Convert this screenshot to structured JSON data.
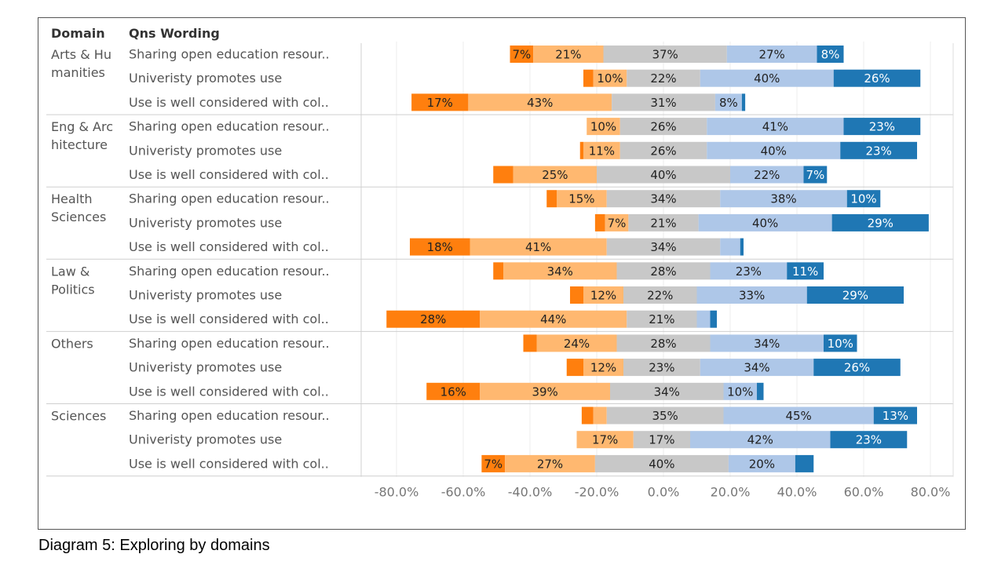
{
  "caption": "Diagram 5: Exploring by domains",
  "chart_data": {
    "type": "bar",
    "subtype": "diverging-stacked-horizontal",
    "column_headers": [
      "Domain",
      "Qns Wording"
    ],
    "x_ticks": [
      "-80.0%",
      "-60.0%",
      "-40.0%",
      "-20.0%",
      "0.0%",
      "20.0%",
      "40.0%",
      "60.0%",
      "80.0%"
    ],
    "xlim": [
      -0.86,
      0.86
    ],
    "grid": true,
    "colors": [
      "#ff7f0e",
      "#ffb870",
      "#c8c8c8",
      "#aec7e8",
      "#1f77b4"
    ],
    "domains": [
      {
        "name_lines": [
          "Arts & Hu",
          "manities"
        ],
        "questions": [
          {
            "label": "Sharing open education resour..",
            "start": -0.46,
            "segments": [
              0.07,
              0.21,
              0.37,
              0.27,
              0.08
            ],
            "labels": [
              "7%",
              "21%",
              "37%",
              "27%",
              "8%"
            ]
          },
          {
            "label": "Univeristy promotes use",
            "start": -0.24,
            "segments": [
              0.03,
              0.1,
              0.22,
              0.4,
              0.26
            ],
            "labels": [
              "",
              "10%",
              "22%",
              "40%",
              "26%"
            ]
          },
          {
            "label": "Use is well considered with col..",
            "start": -0.755,
            "segments": [
              0.17,
              0.43,
              0.31,
              0.08,
              0.01
            ],
            "labels": [
              "17%",
              "43%",
              "31%",
              "8%",
              ""
            ]
          }
        ]
      },
      {
        "name_lines": [
          "Eng & Arc",
          "hitecture"
        ],
        "questions": [
          {
            "label": "Sharing open education resour..",
            "start": -0.23,
            "segments": [
              0.0,
              0.1,
              0.26,
              0.41,
              0.23
            ],
            "labels": [
              "",
              "10%",
              "26%",
              "41%",
              "23%"
            ]
          },
          {
            "label": "Univeristy promotes use",
            "start": -0.25,
            "segments": [
              0.01,
              0.11,
              0.26,
              0.4,
              0.23
            ],
            "labels": [
              "",
              "11%",
              "26%",
              "40%",
              "23%"
            ]
          },
          {
            "label": "Use is well considered with col..",
            "start": -0.51,
            "segments": [
              0.06,
              0.25,
              0.4,
              0.22,
              0.07
            ],
            "labels": [
              "",
              "25%",
              "40%",
              "22%",
              "7%"
            ]
          }
        ]
      },
      {
        "name_lines": [
          "Health",
          "Sciences"
        ],
        "questions": [
          {
            "label": "Sharing open education resour..",
            "start": -0.35,
            "segments": [
              0.03,
              0.15,
              0.34,
              0.38,
              0.1
            ],
            "labels": [
              "",
              "15%",
              "34%",
              "38%",
              "10%"
            ]
          },
          {
            "label": "Univeristy promotes use",
            "start": -0.205,
            "segments": [
              0.03,
              0.07,
              0.21,
              0.4,
              0.29
            ],
            "labels": [
              "",
              "7%",
              "21%",
              "40%",
              "29%"
            ]
          },
          {
            "label": "Use is well considered with col..",
            "start": -0.76,
            "segments": [
              0.18,
              0.41,
              0.34,
              0.06,
              0.01
            ],
            "labels": [
              "18%",
              "41%",
              "34%",
              "",
              ""
            ]
          }
        ]
      },
      {
        "name_lines": [
          "Law &",
          "Politics"
        ],
        "questions": [
          {
            "label": "Sharing open education resour..",
            "start": -0.51,
            "segments": [
              0.03,
              0.34,
              0.28,
              0.23,
              0.11
            ],
            "labels": [
              "",
              "34%",
              "28%",
              "23%",
              "11%"
            ]
          },
          {
            "label": "Univeristy promotes use",
            "start": -0.28,
            "segments": [
              0.04,
              0.12,
              0.22,
              0.33,
              0.29
            ],
            "labels": [
              "",
              "12%",
              "22%",
              "33%",
              "29%"
            ]
          },
          {
            "label": "Use is well considered with col..",
            "start": -0.83,
            "segments": [
              0.28,
              0.44,
              0.21,
              0.04,
              0.02
            ],
            "labels": [
              "28%",
              "44%",
              "21%",
              "",
              ""
            ]
          }
        ]
      },
      {
        "name_lines": [
          "Others"
        ],
        "questions": [
          {
            "label": "Sharing open education resour..",
            "start": -0.42,
            "segments": [
              0.04,
              0.24,
              0.28,
              0.34,
              0.1
            ],
            "labels": [
              "",
              "24%",
              "28%",
              "34%",
              "10%"
            ]
          },
          {
            "label": "Univeristy promotes use",
            "start": -0.29,
            "segments": [
              0.05,
              0.12,
              0.23,
              0.34,
              0.26
            ],
            "labels": [
              "",
              "12%",
              "23%",
              "34%",
              "26%"
            ]
          },
          {
            "label": "Use is well considered with col..",
            "start": -0.71,
            "segments": [
              0.16,
              0.39,
              0.34,
              0.1,
              0.02
            ],
            "labels": [
              "16%",
              "39%",
              "34%",
              "10%",
              ""
            ]
          }
        ]
      },
      {
        "name_lines": [
          "Sciences"
        ],
        "questions": [
          {
            "label": "Sharing open education resour..",
            "start": -0.245,
            "segments": [
              0.035,
              0.04,
              0.35,
              0.45,
              0.13
            ],
            "labels": [
              "",
              "",
              "35%",
              "45%",
              "13%"
            ]
          },
          {
            "label": "Univeristy promotes use",
            "start": -0.26,
            "segments": [
              0.0,
              0.17,
              0.17,
              0.42,
              0.23
            ],
            "labels": [
              "",
              "17%",
              "17%",
              "42%",
              "23%"
            ]
          },
          {
            "label": "Use is well considered with col..",
            "start": -0.545,
            "segments": [
              0.07,
              0.27,
              0.4,
              0.2,
              0.055
            ],
            "labels": [
              "7%",
              "27%",
              "40%",
              "20%",
              ""
            ]
          }
        ]
      }
    ]
  }
}
